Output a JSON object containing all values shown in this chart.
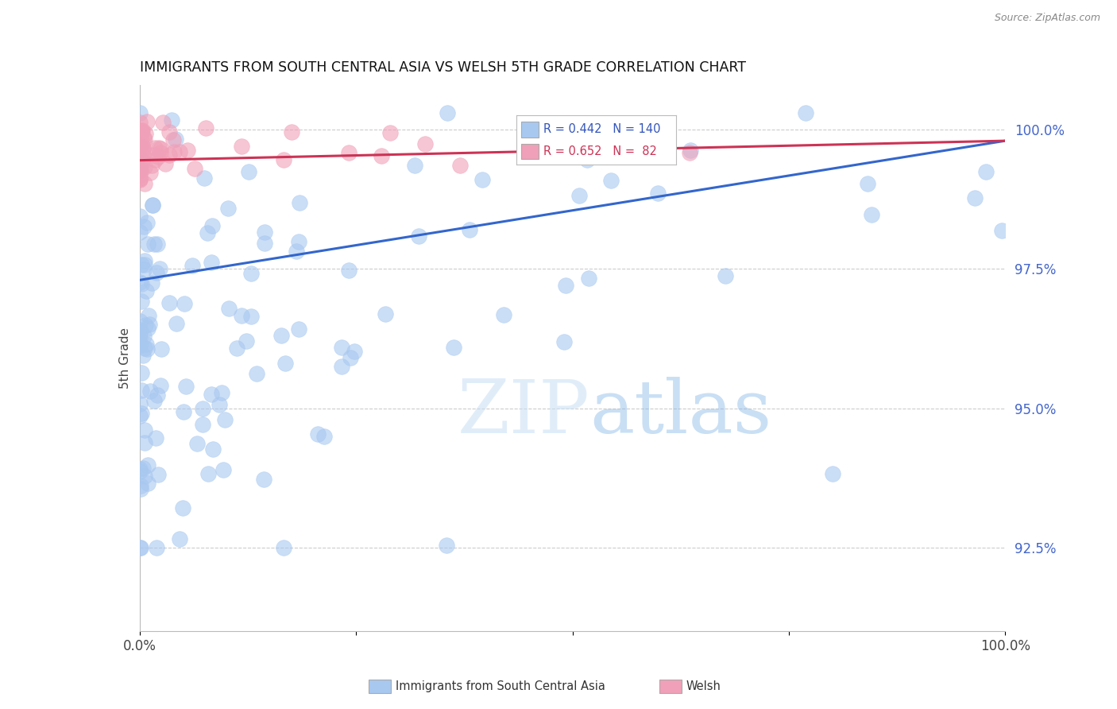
{
  "title": "IMMIGRANTS FROM SOUTH CENTRAL ASIA VS WELSH 5TH GRADE CORRELATION CHART",
  "source": "Source: ZipAtlas.com",
  "ylabel": "5th Grade",
  "y_ticks": [
    92.5,
    95.0,
    97.5,
    100.0
  ],
  "y_tick_labels": [
    "92.5%",
    "95.0%",
    "97.5%",
    "100.0%"
  ],
  "xlim": [
    0.0,
    1.0
  ],
  "ylim": [
    91.0,
    100.8
  ],
  "blue_R": 0.442,
  "blue_N": 140,
  "pink_R": 0.652,
  "pink_N": 82,
  "blue_label": "Immigrants from South Central Asia",
  "pink_label": "Welsh",
  "blue_color": "#A8C8F0",
  "pink_color": "#F0A0B8",
  "blue_edge_color": "#7BAAD8",
  "pink_edge_color": "#D87898",
  "blue_line_color": "#3366CC",
  "pink_line_color": "#CC3355",
  "watermark_zip": "ZIP",
  "watermark_atlas": "atlas",
  "background_color": "#ffffff",
  "grid_color": "#cccccc"
}
